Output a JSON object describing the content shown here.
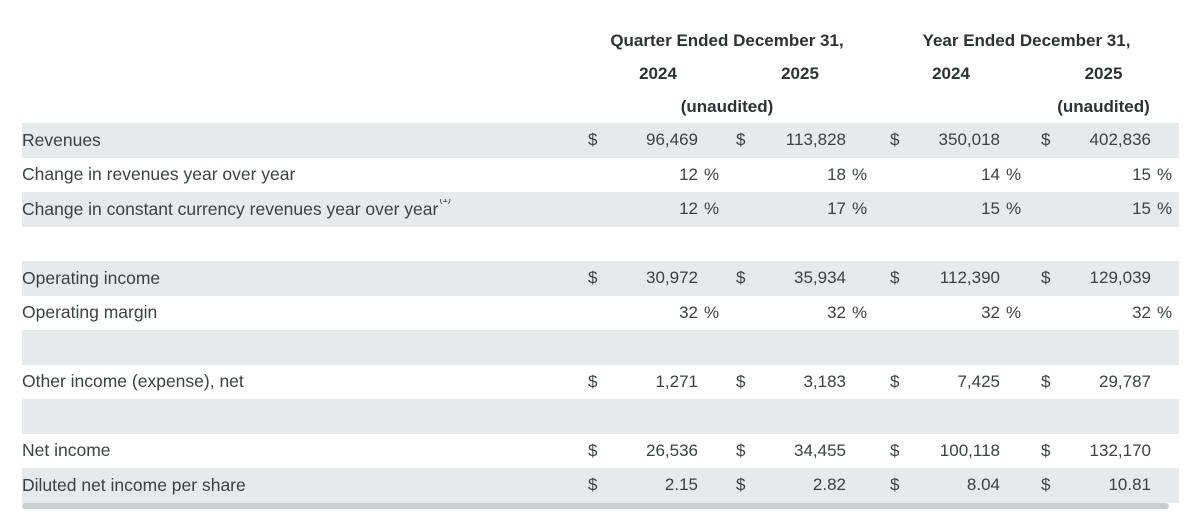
{
  "table": {
    "header": {
      "quarter_title": "Quarter Ended December 31,",
      "year_title": "Year Ended December 31,",
      "quarter_year_1": "2024",
      "quarter_year_2": "2025",
      "year_year_1": "2024",
      "year_year_2": "2025",
      "quarter_unaudited": "(unaudited)",
      "year_unaudited": "(unaudited)"
    },
    "rows": [
      {
        "label": "Revenues",
        "shaded": true,
        "cells": [
          {
            "cur": "$",
            "val": "96,469",
            "pct": ""
          },
          {
            "cur": "$",
            "val": "113,828",
            "pct": ""
          },
          {
            "cur": "$",
            "val": "350,018",
            "pct": ""
          },
          {
            "cur": "$",
            "val": "402,836",
            "pct": ""
          }
        ]
      },
      {
        "label": "Change in revenues year over year",
        "shaded": false,
        "cells": [
          {
            "cur": "",
            "val": "12",
            "pct": "%"
          },
          {
            "cur": "",
            "val": "18",
            "pct": "%"
          },
          {
            "cur": "",
            "val": "14",
            "pct": "%"
          },
          {
            "cur": "",
            "val": "15",
            "pct": "%"
          }
        ]
      },
      {
        "label": "Change in constant currency revenues year over year",
        "label_sup": "(1)",
        "shaded": true,
        "cells": [
          {
            "cur": "",
            "val": "12",
            "pct": "%"
          },
          {
            "cur": "",
            "val": "17",
            "pct": "%"
          },
          {
            "cur": "",
            "val": "15",
            "pct": "%"
          },
          {
            "cur": "",
            "val": "15",
            "pct": "%"
          }
        ]
      },
      {
        "label": "",
        "shaded": false,
        "cells": [
          {
            "cur": "",
            "val": "",
            "pct": ""
          },
          {
            "cur": "",
            "val": "",
            "pct": ""
          },
          {
            "cur": "",
            "val": "",
            "pct": ""
          },
          {
            "cur": "",
            "val": "",
            "pct": ""
          }
        ]
      },
      {
        "label": "Operating income",
        "shaded": true,
        "cells": [
          {
            "cur": "$",
            "val": "30,972",
            "pct": ""
          },
          {
            "cur": "$",
            "val": "35,934",
            "pct": ""
          },
          {
            "cur": "$",
            "val": "112,390",
            "pct": ""
          },
          {
            "cur": "$",
            "val": "129,039",
            "pct": ""
          }
        ]
      },
      {
        "label": "Operating margin",
        "shaded": false,
        "cells": [
          {
            "cur": "",
            "val": "32",
            "pct": "%"
          },
          {
            "cur": "",
            "val": "32",
            "pct": "%"
          },
          {
            "cur": "",
            "val": "32",
            "pct": "%"
          },
          {
            "cur": "",
            "val": "32",
            "pct": "%"
          }
        ]
      },
      {
        "label": "",
        "shaded": true,
        "cells": [
          {
            "cur": "",
            "val": "",
            "pct": ""
          },
          {
            "cur": "",
            "val": "",
            "pct": ""
          },
          {
            "cur": "",
            "val": "",
            "pct": ""
          },
          {
            "cur": "",
            "val": "",
            "pct": ""
          }
        ]
      },
      {
        "label": "Other income (expense), net",
        "shaded": false,
        "cells": [
          {
            "cur": "$",
            "val": "1,271",
            "pct": ""
          },
          {
            "cur": "$",
            "val": "3,183",
            "pct": ""
          },
          {
            "cur": "$",
            "val": "7,425",
            "pct": ""
          },
          {
            "cur": "$",
            "val": "29,787",
            "pct": ""
          }
        ]
      },
      {
        "label": "",
        "shaded": true,
        "cells": [
          {
            "cur": "",
            "val": "",
            "pct": ""
          },
          {
            "cur": "",
            "val": "",
            "pct": ""
          },
          {
            "cur": "",
            "val": "",
            "pct": ""
          },
          {
            "cur": "",
            "val": "",
            "pct": ""
          }
        ]
      },
      {
        "label": "Net income",
        "shaded": false,
        "cells": [
          {
            "cur": "$",
            "val": "26,536",
            "pct": ""
          },
          {
            "cur": "$",
            "val": "34,455",
            "pct": ""
          },
          {
            "cur": "$",
            "val": "100,118",
            "pct": ""
          },
          {
            "cur": "$",
            "val": "132,170",
            "pct": ""
          }
        ]
      },
      {
        "label": "Diluted net income per share",
        "shaded": true,
        "cells": [
          {
            "cur": "$",
            "val": "2.15",
            "pct": ""
          },
          {
            "cur": "$",
            "val": "2.82",
            "pct": ""
          },
          {
            "cur": "$",
            "val": "8.04",
            "pct": ""
          },
          {
            "cur": "$",
            "val": "10.81",
            "pct": ""
          }
        ]
      }
    ]
  },
  "colors": {
    "row_shade": "#e7e9ea",
    "text": "#3d4144",
    "header_text": "#2f3234",
    "bottom_bar": "#caccce",
    "background": "#ffffff"
  }
}
